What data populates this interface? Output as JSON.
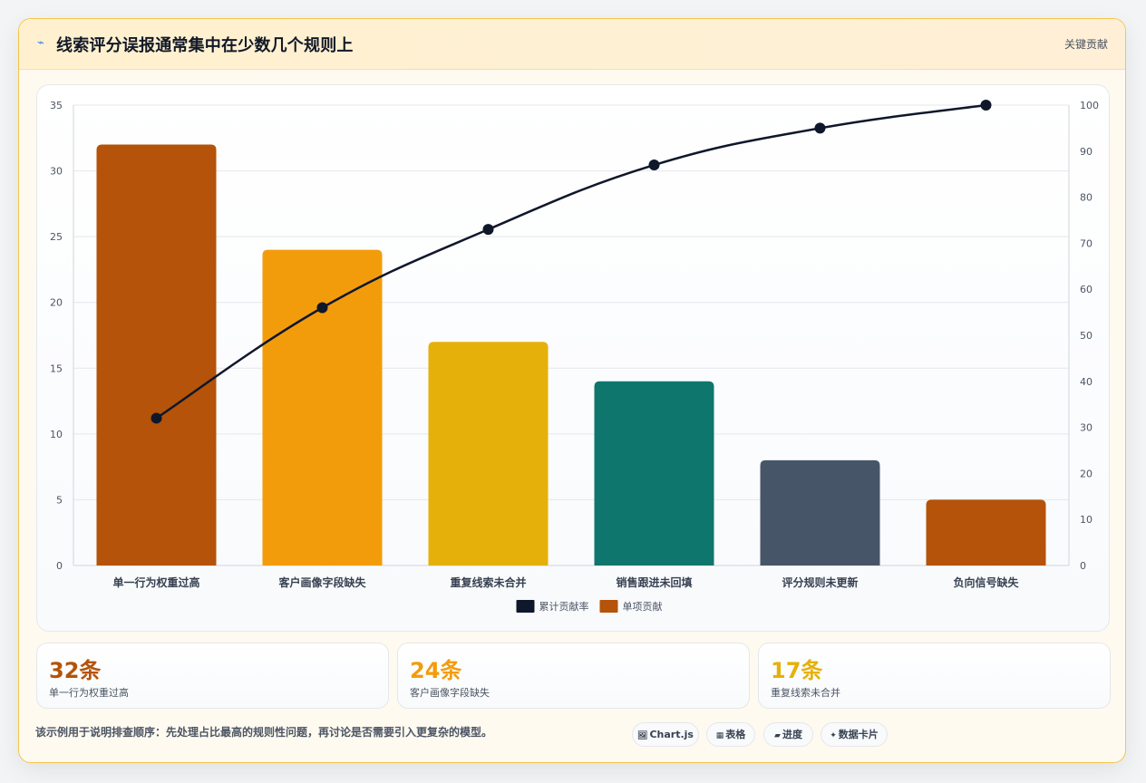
{
  "header": {
    "icon": "chart-icon",
    "title": "线索评分误报通常集中在少数几个规则上",
    "right_label": "关键贡献"
  },
  "chart_data": {
    "type": "bar",
    "categories": [
      "单一行为权重过高",
      "客户画像字段缺失",
      "重复线索未合并",
      "销售跟进未回填",
      "评分规则未更新",
      "负向信号缺失"
    ],
    "series": [
      {
        "name": "单项贡献",
        "type": "bar",
        "axis": "left",
        "values": [
          32,
          24,
          17,
          14,
          8,
          5
        ],
        "colors": [
          "#b45309",
          "#f39c0b",
          "#e6b00a",
          "#0f766e",
          "#475569",
          "#b45309"
        ]
      },
      {
        "name": "累计贡献率",
        "type": "line",
        "axis": "right",
        "values": [
          32,
          56,
          73,
          87,
          95,
          100
        ],
        "color": "#0f172a"
      }
    ],
    "y_left": {
      "range": [
        0,
        35
      ],
      "ticks": [
        0,
        5,
        10,
        15,
        20,
        25,
        30,
        35
      ]
    },
    "y_right": {
      "range": [
        0,
        100
      ],
      "ticks": [
        0,
        10,
        20,
        30,
        40,
        50,
        60,
        70,
        80,
        90,
        100
      ]
    },
    "legend": {
      "placement": "bottom",
      "items": [
        {
          "label": "累计贡献率",
          "color": "#0f172a"
        },
        {
          "label": "单项贡献",
          "color": "#b45309"
        }
      ]
    },
    "grid": true
  },
  "stats": [
    {
      "value": "32条",
      "label": "单一行为权重过高",
      "color": "#b45309"
    },
    {
      "value": "24条",
      "label": "客户画像字段缺失",
      "color": "#f39c0b"
    },
    {
      "value": "17条",
      "label": "重复线索未合并",
      "color": "#e6b00a"
    }
  ],
  "footnote": "该示例用于说明排查顺序：先处理占比最高的规则性问题，再讨论是否需要引入更复杂的模型。",
  "chips": [
    {
      "icon": "🖼",
      "label": "Chart.js"
    },
    {
      "icon": "▦",
      "label": "表格"
    },
    {
      "icon": "▰",
      "label": "进度"
    },
    {
      "icon": "✦",
      "label": "数据卡片"
    }
  ]
}
